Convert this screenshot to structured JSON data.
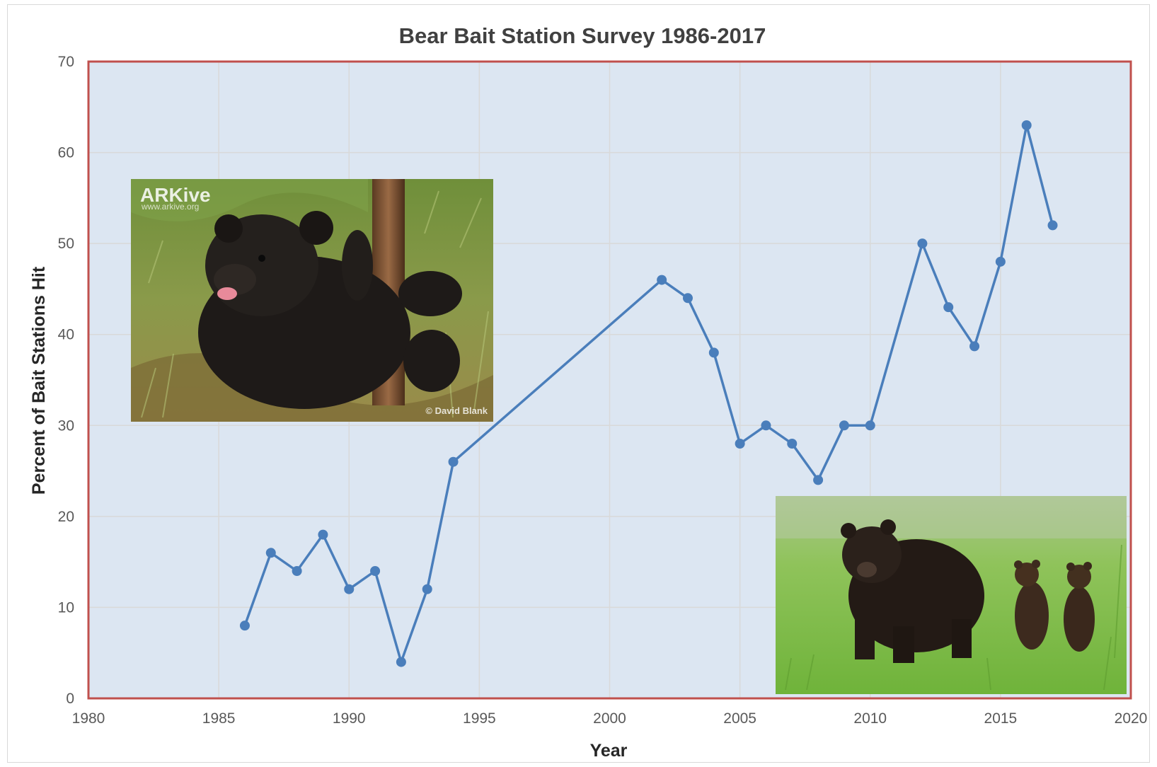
{
  "chart_data": {
    "type": "line",
    "title": "Bear Bait Station Survey 1986-2017",
    "xlabel": "Year",
    "ylabel": "Percent  of Bait Stations Hit",
    "xlim": [
      1980,
      2020
    ],
    "ylim": [
      0,
      70
    ],
    "xticks": [
      1980,
      1985,
      1990,
      1995,
      2000,
      2005,
      2010,
      2015,
      2020
    ],
    "yticks": [
      0,
      10,
      20,
      30,
      40,
      50,
      60,
      70
    ],
    "grid": true,
    "legend": "none",
    "series": [
      {
        "x": [
          1986,
          1987,
          1988,
          1989,
          1990,
          1991,
          1992,
          1993,
          1994,
          2002,
          2003,
          2004,
          2005,
          2006,
          2007,
          2008,
          2009,
          2010,
          2012,
          2013,
          2014,
          2015,
          2016,
          2017
        ],
        "values": [
          8,
          16,
          14,
          18,
          12,
          14,
          4,
          12,
          26,
          46,
          44,
          38,
          28,
          30,
          28,
          24,
          30,
          30,
          50,
          43,
          38.7,
          48,
          63,
          52
        ]
      }
    ],
    "colors": {
      "series": "#4a7ebb",
      "plot_bg": "#dce6f2",
      "plot_border": "#c0504d",
      "grid": "#d9d9d9"
    }
  },
  "photos": {
    "cub": {
      "watermark": "ARKive",
      "watermark_url": "www.arkive.org",
      "credit": "© David Blank"
    },
    "family": {}
  }
}
